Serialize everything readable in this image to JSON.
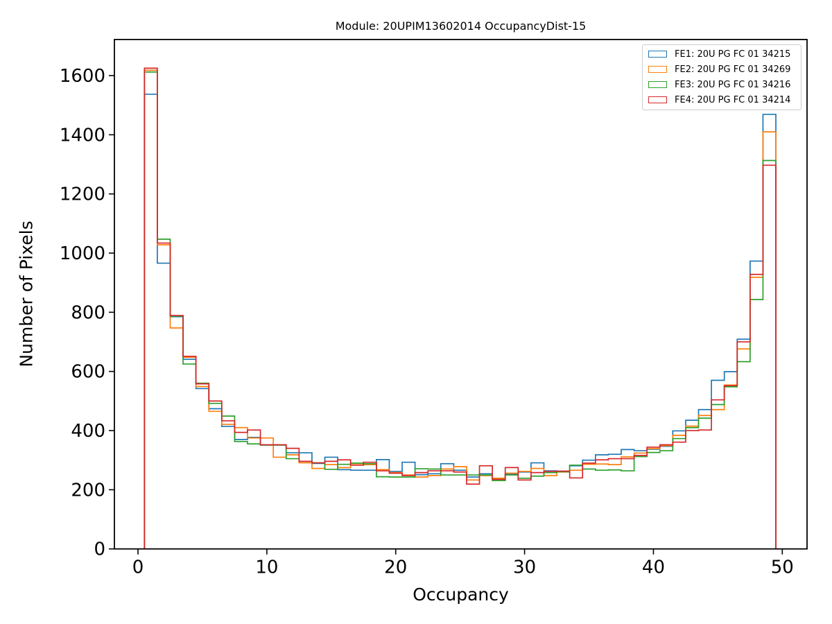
{
  "title": "Module: 20UPIM13602014 OccupancyDist-15",
  "axes": {
    "xlabel": "Occupancy",
    "ylabel": "Number of Pixels"
  },
  "chart_data": {
    "type": "step-histogram",
    "title": "Module: 20UPIM13602014 OccupancyDist-15",
    "xlabel": "Occupancy",
    "ylabel": "Number of Pixels",
    "xlim": [
      -1.83,
      51.92
    ],
    "ylim": [
      0,
      1722
    ],
    "xticks": [
      0,
      10,
      20,
      30,
      40,
      50
    ],
    "yticks": [
      0,
      200,
      400,
      600,
      800,
      1000,
      1200,
      1400,
      1600
    ],
    "grid": false,
    "legend_position": "upper right",
    "bin_start": 0.5,
    "bin_width": 1,
    "n_bins": 49,
    "series": [
      {
        "name": "FE1: 20U PG FC 01 34215",
        "color": "#1f77b4",
        "values": [
          1537,
          966,
          785,
          641,
          542,
          474,
          414,
          370,
          377,
          351,
          351,
          325,
          325,
          289,
          310,
          268,
          266,
          266,
          302,
          262,
          293,
          251,
          254,
          288,
          266,
          243,
          254,
          236,
          253,
          260,
          291,
          264,
          262,
          281,
          300,
          318,
          320,
          336,
          332,
          337,
          347,
          399,
          435,
          471,
          570,
          599,
          709,
          973,
          1469
        ]
      },
      {
        "name": "FE2: 20U PG FC 01 34269",
        "color": "#ff7f0e",
        "values": [
          1618,
          1028,
          747,
          648,
          549,
          465,
          421,
          410,
          375,
          375,
          310,
          318,
          291,
          272,
          285,
          275,
          288,
          285,
          268,
          258,
          250,
          243,
          248,
          270,
          278,
          233,
          248,
          239,
          256,
          262,
          272,
          248,
          260,
          266,
          286,
          287,
          285,
          311,
          324,
          339,
          349,
          384,
          415,
          451,
          471,
          554,
          676,
          918,
          1410
        ]
      },
      {
        "name": "FE3: 20U PG FC 01 34216",
        "color": "#2ca02c",
        "values": [
          1612,
          1047,
          787,
          625,
          560,
          492,
          449,
          363,
          355,
          351,
          351,
          305,
          296,
          291,
          269,
          286,
          290,
          288,
          244,
          243,
          243,
          271,
          270,
          250,
          250,
          250,
          250,
          231,
          250,
          239,
          246,
          258,
          261,
          283,
          270,
          266,
          267,
          264,
          312,
          326,
          332,
          373,
          410,
          442,
          488,
          548,
          633,
          843,
          1313
        ]
      },
      {
        "name": "FE4: 20U PG FC 01 34214",
        "color": "#d62728",
        "values": [
          1625,
          1034,
          789,
          651,
          558,
          500,
          433,
          394,
          402,
          352,
          352,
          340,
          296,
          291,
          296,
          301,
          283,
          293,
          264,
          256,
          248,
          258,
          264,
          264,
          260,
          219,
          281,
          235,
          275,
          233,
          258,
          262,
          263,
          240,
          290,
          301,
          305,
          305,
          316,
          344,
          352,
          361,
          400,
          402,
          504,
          552,
          700,
          928,
          1297
        ]
      }
    ]
  }
}
